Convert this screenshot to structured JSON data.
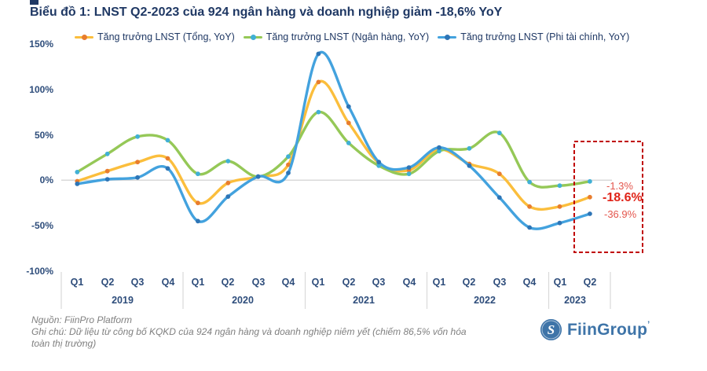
{
  "title": "Biểu đồ 1: LNST Q2-2023 của 924 ngân hàng và doanh nghiệp giảm -18,6% YoY",
  "title_color": "#1F3864",
  "legend": [
    {
      "label": "Tăng trưởng LNST (Tổng, YoY)",
      "line_color": "#FBBE3C",
      "marker_color": "#E87D2E"
    },
    {
      "label": "Tăng trưởng LNST (Ngân hàng, YoY)",
      "line_color": "#95C857",
      "marker_color": "#41B0D5"
    },
    {
      "label": "Tăng trưởng LNST (Phi tài chính, YoY)",
      "line_color": "#43A2DE",
      "marker_color": "#2E75B6"
    }
  ],
  "chart_data": {
    "type": "line",
    "title": "Biểu đồ 1: LNST Q2-2023 của 924 ngân hàng và doanh nghiệp giảm -18,6% YoY",
    "xlabel": "",
    "ylabel": "",
    "ylim": [
      -100,
      150
    ],
    "grid": "zero-line-only",
    "legend_position": "top",
    "x_quarters": [
      "Q1",
      "Q2",
      "Q3",
      "Q4",
      "Q1",
      "Q2",
      "Q3",
      "Q4",
      "Q1",
      "Q2",
      "Q3",
      "Q4",
      "Q1",
      "Q2",
      "Q3",
      "Q4",
      "Q1",
      "Q2"
    ],
    "x_years": [
      "2019",
      "2020",
      "2021",
      "2022",
      "2023"
    ],
    "y_ticks": [
      "150%",
      "100%",
      "50%",
      "0%",
      "-50%",
      "-100%"
    ],
    "series": [
      {
        "name": "Tăng trưởng LNST (Tổng, YoY)",
        "color": "#FBBE3C",
        "marker_color": "#E87D2E",
        "values": [
          -1,
          10,
          20,
          24,
          -25,
          -3,
          4,
          17,
          108,
          63,
          19,
          11,
          34,
          18,
          7,
          -29,
          -29,
          -18.6
        ]
      },
      {
        "name": "Tăng trưởng LNST (Ngân hàng, YoY)",
        "color": "#95C857",
        "marker_color": "#41B0D5",
        "values": [
          9,
          29,
          48,
          44,
          7,
          21,
          4,
          26,
          75,
          41,
          16,
          7,
          32,
          35,
          52,
          -2,
          -6,
          -1.3
        ]
      },
      {
        "name": "Tăng trưởng LNST (Phi tài chính, YoY)",
        "color": "#43A2DE",
        "marker_color": "#2E75B6",
        "values": [
          -4,
          1,
          3,
          13,
          -45,
          -18,
          4,
          8,
          139,
          81,
          20,
          14,
          36,
          16,
          -19,
          -52,
          -47,
          -36.9
        ]
      }
    ],
    "end_labels": [
      {
        "text": "-1.3%",
        "bold": false,
        "color": "#E4564D"
      },
      {
        "text": "-18.6%",
        "bold": true,
        "color": "#E02419"
      },
      {
        "text": "-36.9%",
        "bold": false,
        "color": "#E4564D"
      }
    ],
    "highlight_box": {
      "color": "#C00000",
      "covers": "Q2 2023 end values"
    }
  },
  "footer": {
    "source": "Nguồn: FiinPro Platform",
    "note_line1": "Ghi chú: Dữ liệu từ công bố KQKD của 924 ngân hàng và doanh nghiệp niêm yết (chiếm 86,5% vốn hóa",
    "note_line2": "toàn thị trường)"
  },
  "logo": {
    "name": "FiinGroup",
    "mark": "’",
    "glyph": "S",
    "color": "#3E74A8"
  }
}
